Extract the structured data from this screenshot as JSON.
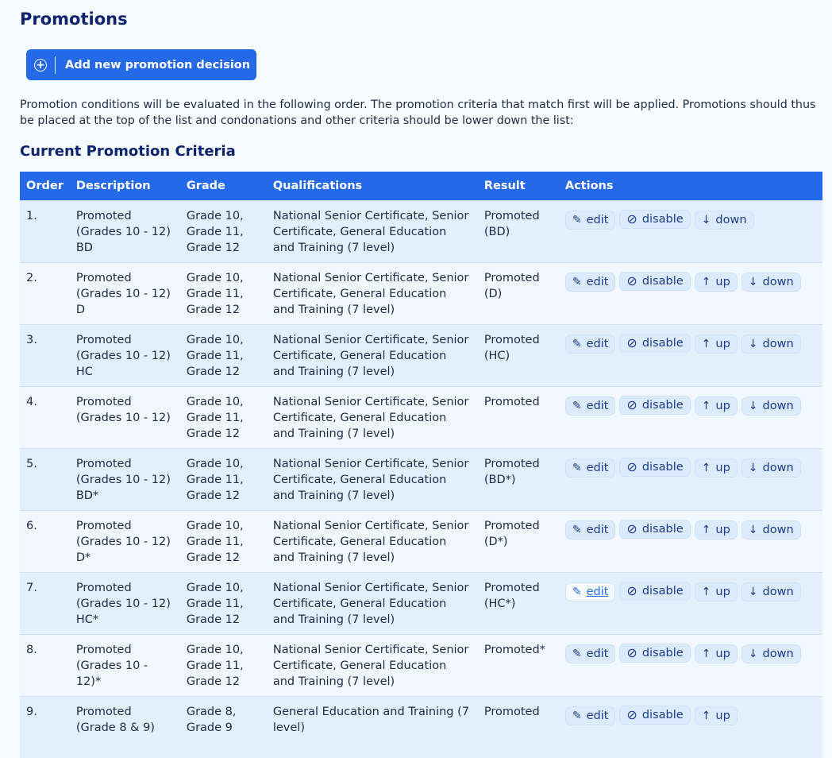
{
  "page_title": "Promotions",
  "add_button": {
    "label": "Add new promotion decision",
    "icon": "plus-circle-icon"
  },
  "intro": "Promotion conditions will be evaluated in the following order. The promotion criteria that match first will be applied. Promotions should thus be placed at the top of the list and condonations and other criteria should be lower down the list:",
  "section_title": "Current Promotion Criteria",
  "colors": {
    "accent": "#2469e8",
    "heading": "#0d2370",
    "row_odd": "#e3f0fc",
    "row_even": "#f0f7fe"
  },
  "table": {
    "headers": [
      "Order",
      "Description",
      "Grade",
      "Qualifications",
      "Result",
      "Actions"
    ],
    "action_labels": {
      "edit": "edit",
      "disable": "disable",
      "up": "up",
      "down": "down"
    },
    "rows": [
      {
        "order": "1.",
        "description": "Promoted (Grades 10 - 12) BD",
        "grade": "Grade 10, Grade 11, Grade 12",
        "qualifications": "National Senior Certificate, Senior Certificate, General Education and Training (7 level)",
        "result": "Promoted (BD)",
        "actions": [
          "edit",
          "disable",
          "down"
        ]
      },
      {
        "order": "2.",
        "description": "Promoted (Grades 10 - 12) D",
        "grade": "Grade 10, Grade 11, Grade 12",
        "qualifications": "National Senior Certificate, Senior Certificate, General Education and Training (7 level)",
        "result": "Promoted (D)",
        "actions": [
          "edit",
          "disable",
          "up",
          "down"
        ]
      },
      {
        "order": "3.",
        "description": "Promoted (Grades 10 - 12) HC",
        "grade": "Grade 10, Grade 11, Grade 12",
        "qualifications": "National Senior Certificate, Senior Certificate, General Education and Training (7 level)",
        "result": "Promoted (HC)",
        "actions": [
          "edit",
          "disable",
          "up",
          "down"
        ]
      },
      {
        "order": "4.",
        "description": "Promoted (Grades 10 - 12)",
        "grade": "Grade 10, Grade 11, Grade 12",
        "qualifications": "National Senior Certificate, Senior Certificate, General Education and Training (7 level)",
        "result": "Promoted",
        "actions": [
          "edit",
          "disable",
          "up",
          "down"
        ]
      },
      {
        "order": "5.",
        "description": "Promoted (Grades 10 - 12) BD*",
        "grade": "Grade 10, Grade 11, Grade 12",
        "qualifications": "National Senior Certificate, Senior Certificate, General Education and Training (7 level)",
        "result": "Promoted (BD*)",
        "actions": [
          "edit",
          "disable",
          "up",
          "down"
        ]
      },
      {
        "order": "6.",
        "description": "Promoted (Grades 10 - 12) D*",
        "grade": "Grade 10, Grade 11, Grade 12",
        "qualifications": "National Senior Certificate, Senior Certificate, General Education and Training (7 level)",
        "result": "Promoted (D*)",
        "actions": [
          "edit",
          "disable",
          "up",
          "down"
        ]
      },
      {
        "order": "7.",
        "description": "Promoted (Grades 10 - 12) HC*",
        "grade": "Grade 10, Grade 11, Grade 12",
        "qualifications": "National Senior Certificate, Senior Certificate, General Education and Training (7 level)",
        "result": "Promoted (HC*)",
        "actions": [
          "edit",
          "disable",
          "up",
          "down"
        ],
        "hovered": "edit"
      },
      {
        "order": "8.",
        "description": "Promoted (Grades 10 - 12)*",
        "grade": "Grade 10, Grade 11, Grade 12",
        "qualifications": "National Senior Certificate, Senior Certificate, General Education and Training (7 level)",
        "result": "Promoted*",
        "actions": [
          "edit",
          "disable",
          "up",
          "down"
        ]
      },
      {
        "order": "9.",
        "description": "Promoted (Grade 8 & 9)",
        "grade": "Grade 8, Grade 9",
        "qualifications": "General Education and Training (7 level)",
        "result": "Promoted",
        "actions": [
          "edit",
          "disable",
          "up"
        ]
      }
    ]
  }
}
